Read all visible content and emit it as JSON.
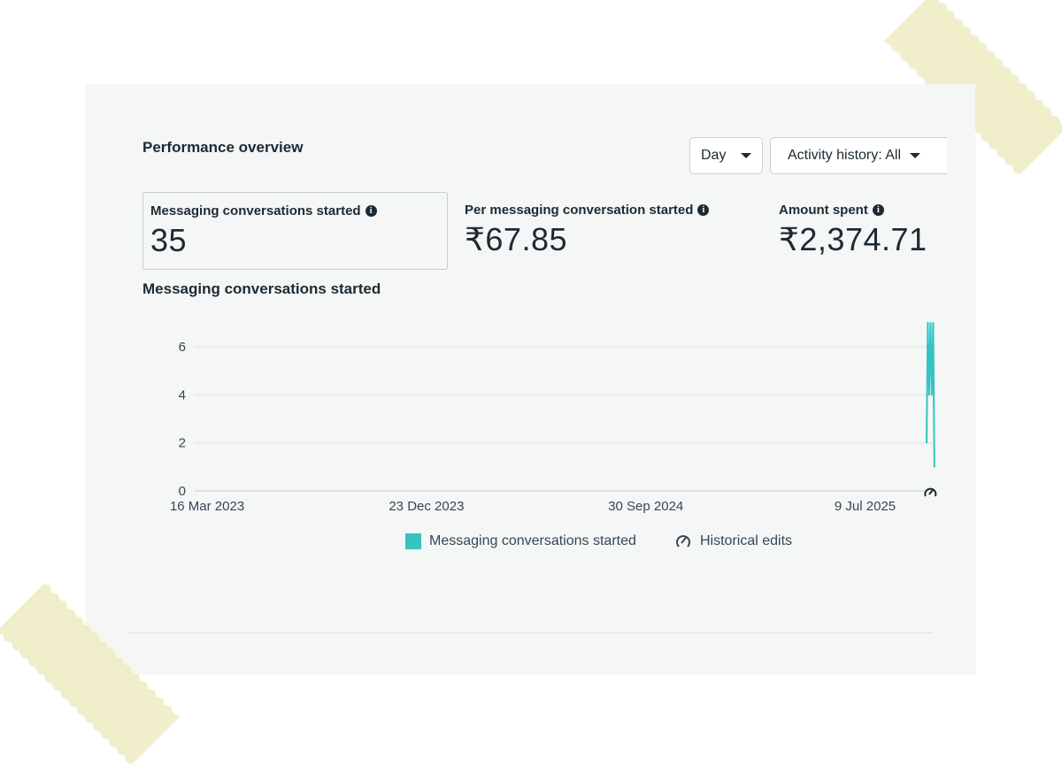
{
  "header": {
    "title": "Performance overview",
    "day_dropdown": "Day",
    "activity_dropdown": "Activity history: All"
  },
  "metrics": [
    {
      "label": "Messaging conversations started",
      "value": "35",
      "selected": true
    },
    {
      "label": "Per messaging conversation started",
      "value": "₹67.85",
      "selected": false
    },
    {
      "label": "Amount spent",
      "value": "₹2,374.71",
      "selected": false
    }
  ],
  "chart": {
    "title": "Messaging conversations started",
    "legend": {
      "series_label": "Messaging conversations started",
      "historical_label": "Historical edits"
    }
  },
  "colors": {
    "accent": "#33c3c3",
    "text": "#1c2b33",
    "gridline": "#dde1e4"
  },
  "icons": {
    "info": "info-icon",
    "dropdown": "caret-down-icon",
    "historical": "historical-edit-icon"
  },
  "chart_data": {
    "type": "line",
    "title": "Messaging conversations started",
    "xlabel": "",
    "ylabel": "",
    "x_ticks": [
      "16 Mar 2023",
      "23 Dec 2023",
      "30 Sep 2024",
      "9 Jul 2025"
    ],
    "y_ticks": [
      0,
      2,
      4,
      6
    ],
    "ylim": [
      0,
      7
    ],
    "grid": true,
    "legend_position": "bottom",
    "series": [
      {
        "name": "Messaging conversations started",
        "color": "#33c3c3",
        "x": [
          "2025-09-26",
          "2025-09-27",
          "2025-09-28",
          "2025-09-29",
          "2025-09-30",
          "2025-10-01",
          "2025-10-02"
        ],
        "values": [
          2,
          7,
          4,
          7,
          4,
          7,
          1
        ]
      }
    ],
    "annotations": [
      {
        "type": "historical-edit-marker",
        "x": "2025-09-27"
      }
    ]
  }
}
